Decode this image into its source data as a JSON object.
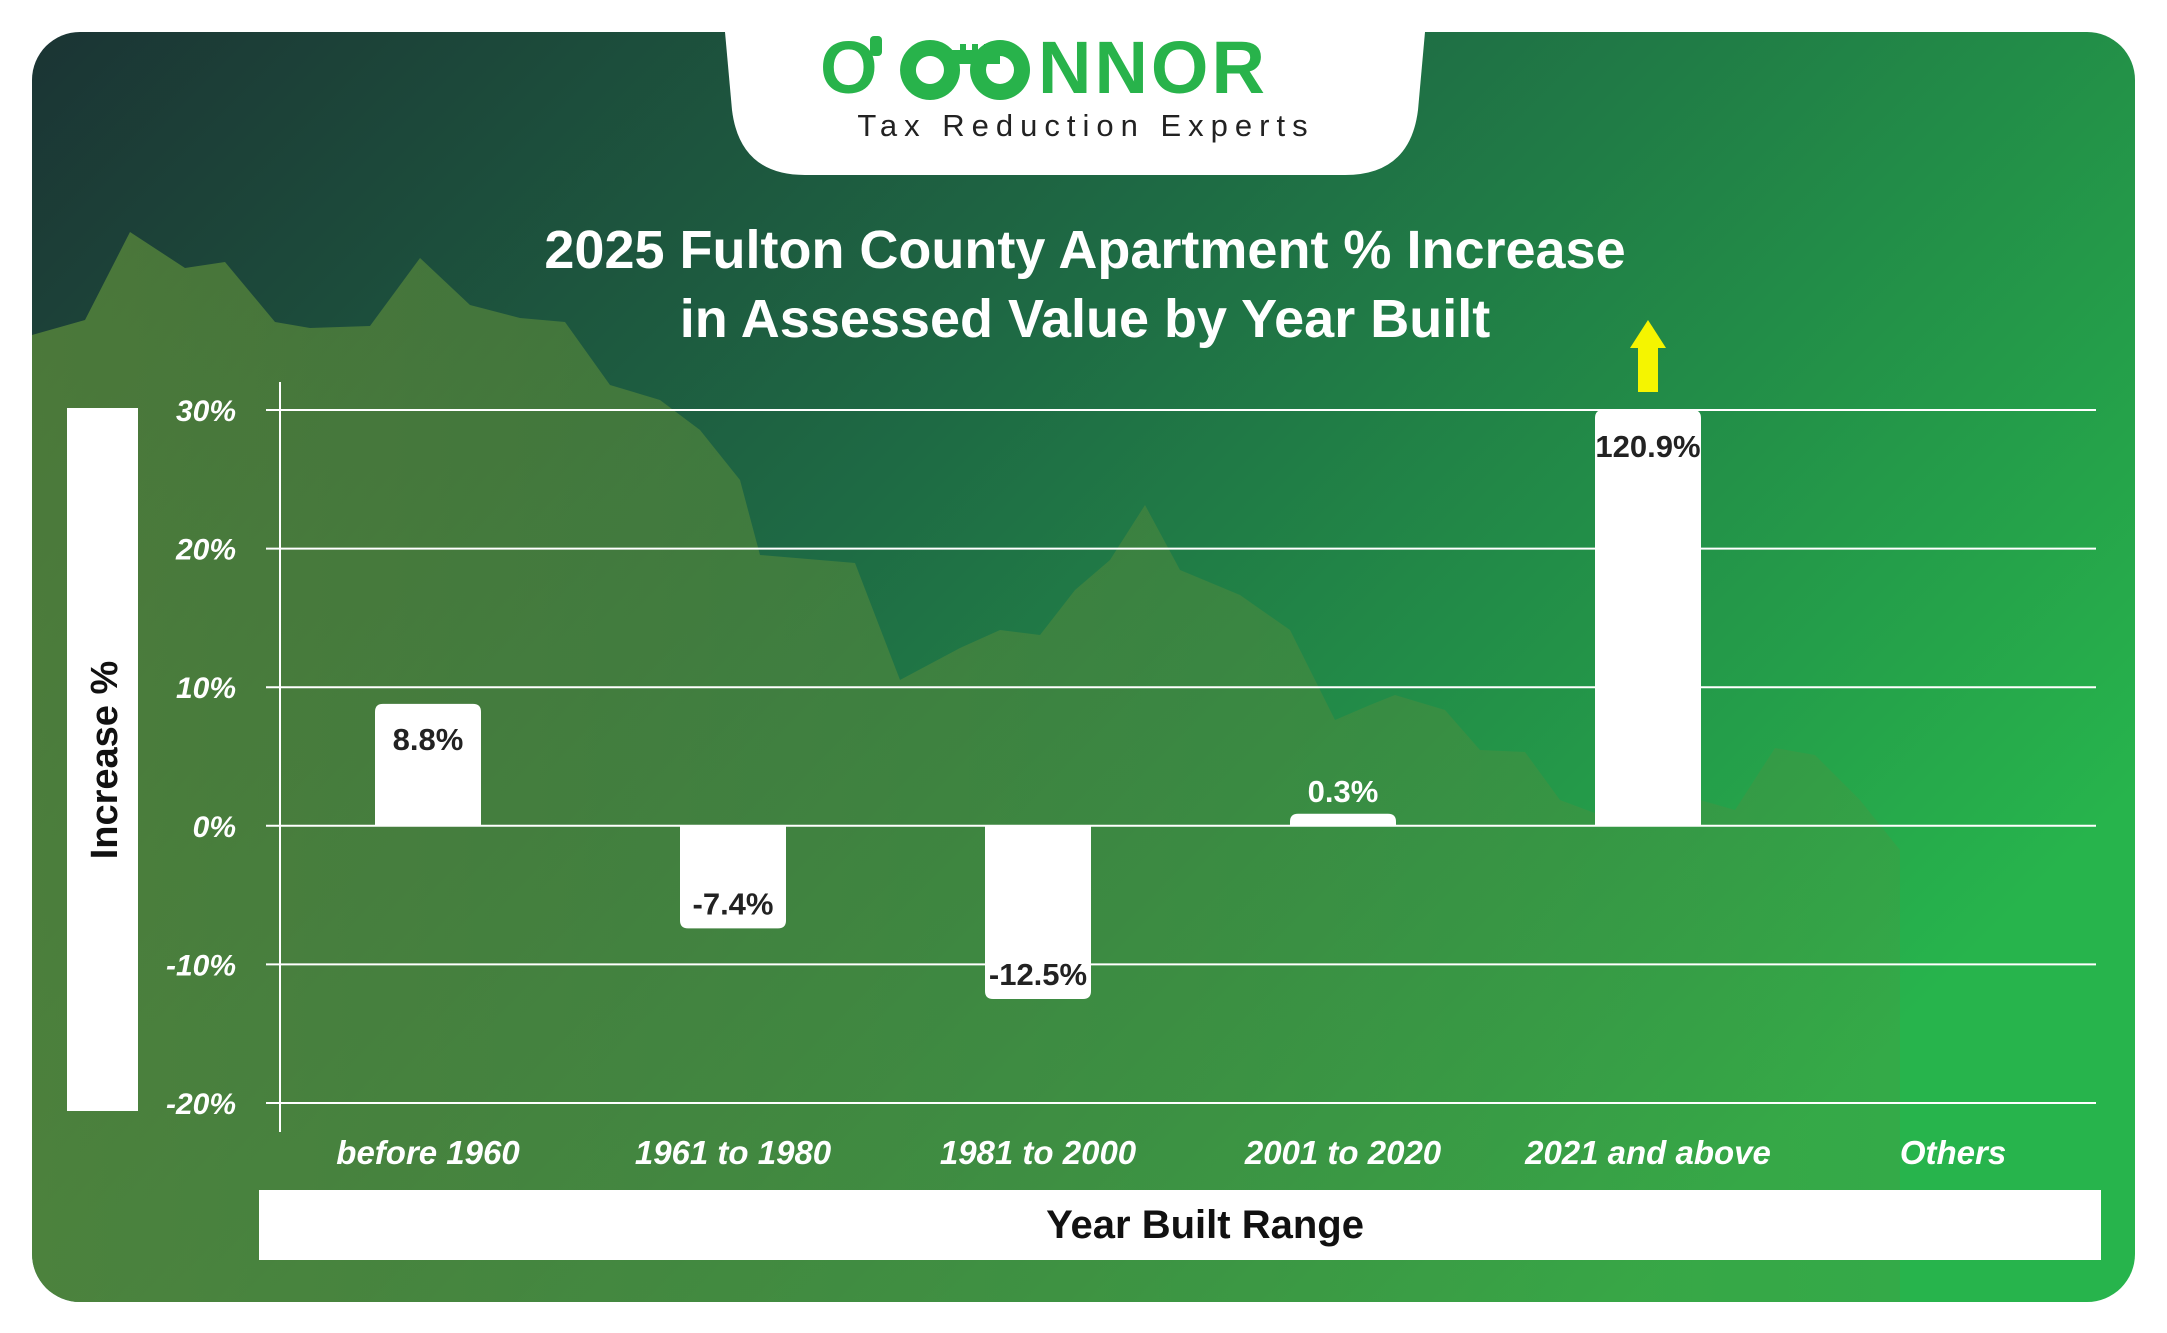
{
  "brand": {
    "name_left": "O",
    "name_right": "NNOR",
    "tagline": "Tax Reduction Experts",
    "green": "#28b34b"
  },
  "colors": {
    "bg_dark": "#1b3a34",
    "bg_mid": "#1f6b45",
    "bg_light": "#29b24c",
    "mountain": "#5a8a3a",
    "bar": "#ffffff",
    "arrow": "#f5f500",
    "label_text": "#222222"
  },
  "chart_data": {
    "type": "bar",
    "title_line1": "2025 Fulton County Apartment % Increase",
    "title_line2": "in Assessed Value by Year Built",
    "xlabel": "Year Built Range",
    "ylabel": "Increase %",
    "ylim": [
      -20,
      30
    ],
    "yticks": [
      30,
      20,
      10,
      0,
      -10,
      -20
    ],
    "ytick_labels": [
      "30%",
      "20%",
      "10%",
      "0%",
      "-10%",
      "-20%"
    ],
    "grid": true,
    "categories": [
      "before 1960",
      "1961 to 1980",
      "1981 to 2000",
      "2001 to 2020",
      "2021 and above",
      "Others"
    ],
    "values": [
      8.8,
      -7.4,
      -12.5,
      0.3,
      120.9,
      null
    ],
    "value_labels": [
      "8.8%",
      "-7.4%",
      "-12.5%",
      "0.3%",
      "120.9%",
      ""
    ],
    "clipped_note": "arrow indicates value exceeds axis top"
  }
}
